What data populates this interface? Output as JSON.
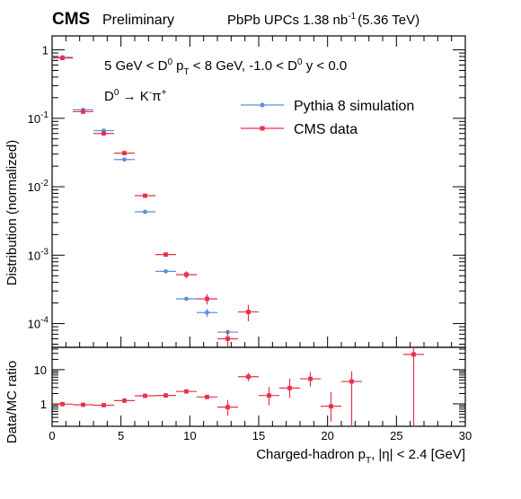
{
  "header": {
    "experiment": "CMS",
    "status": "Preliminary",
    "lumi_text": "PbPb UPCs 1.38 nb",
    "lumi_exp": "-1",
    "energy": "(5.36 TeV)"
  },
  "chart_data": [
    {
      "type": "scatter",
      "panel": "top",
      "title": "",
      "ylabel": "Distribution (normalized)",
      "xlim": [
        0,
        30
      ],
      "ylim_log": [
        4.5e-05,
        1.6
      ],
      "y_scale": "log",
      "y_ticks": [
        {
          "base": "10",
          "exp": "-4",
          "value": 0.0001
        },
        {
          "base": "10",
          "exp": "-3",
          "value": 0.001
        },
        {
          "base": "10",
          "exp": "-2",
          "value": 0.01
        },
        {
          "base": "10",
          "exp": "-1",
          "value": 0.1
        },
        {
          "base": "1",
          "exp": "",
          "value": 1
        }
      ],
      "annotations": {
        "selection": {
          "t1": "5 GeV < D",
          "s1": "0",
          "t2": " p",
          "s2": "T",
          "t3": " < 8 GeV, -1.0 < D",
          "s3": "0",
          "t4": " y < 0.0"
        },
        "decay": {
          "t1": "D",
          "s1": "0",
          "arrow": " → K",
          "s2": "-",
          "t2": "π",
          "s3": "+"
        }
      },
      "legend_placement": "top-right",
      "series": [
        {
          "name": "Pythia 8 simulation",
          "color": "#5b8ee0",
          "points": [
            {
              "x": 0.75,
              "y": 0.78,
              "xerr": 0.75
            },
            {
              "x": 2.25,
              "y": 0.133,
              "xerr": 0.75
            },
            {
              "x": 3.75,
              "y": 0.066,
              "xerr": 0.75
            },
            {
              "x": 5.25,
              "y": 0.025,
              "xerr": 0.75
            },
            {
              "x": 6.75,
              "y": 0.0043,
              "xerr": 0.75
            },
            {
              "x": 8.25,
              "y": 0.00058,
              "xerr": 0.75
            },
            {
              "x": 9.75,
              "y": 0.00023,
              "xerr": 0.75
            },
            {
              "x": 11.25,
              "y": 0.000145,
              "xerr": 0.75,
              "yerr": 2e-05
            },
            {
              "x": 12.75,
              "y": 7.5e-05,
              "xerr": 0.75
            }
          ]
        },
        {
          "name": "CMS data",
          "color": "#e8304a",
          "points": [
            {
              "x": 0.75,
              "y": 0.76,
              "xerr": 0.75
            },
            {
              "x": 2.25,
              "y": 0.125,
              "xerr": 0.75
            },
            {
              "x": 3.75,
              "y": 0.06,
              "xerr": 0.75
            },
            {
              "x": 5.25,
              "y": 0.031,
              "xerr": 0.75
            },
            {
              "x": 6.75,
              "y": 0.0074,
              "xerr": 0.75
            },
            {
              "x": 8.25,
              "y": 0.00102,
              "xerr": 0.75,
              "yerr": 7e-05
            },
            {
              "x": 9.75,
              "y": 0.00052,
              "xerr": 0.75,
              "yerr": 6e-05
            },
            {
              "x": 11.25,
              "y": 0.00023,
              "xerr": 0.75,
              "yerr": 4e-05
            },
            {
              "x": 12.75,
              "y": 6e-05,
              "xerr": 0.75,
              "yerr": 2e-05
            },
            {
              "x": 14.25,
              "y": 0.000148,
              "xerr": 0.75,
              "yerr": 4e-05
            }
          ]
        }
      ]
    },
    {
      "type": "scatter",
      "panel": "bottom",
      "xlabel": {
        "t1": "Charged-hadron p",
        "s1": "T",
        "t2": ", |η| < 2.4 [GeV]"
      },
      "ylabel": "Data/MC ratio",
      "xlim": [
        0,
        30
      ],
      "x_ticks": [
        "0",
        "5",
        "10",
        "15",
        "20",
        "25",
        "30"
      ],
      "y_scale": "log",
      "ylim_log": [
        0.22,
        45
      ],
      "y_ticks": [
        {
          "label": "1",
          "value": 1
        },
        {
          "label": "10",
          "value": 10
        }
      ],
      "series": [
        {
          "name": "",
          "color": "#e8304a",
          "points": [
            {
              "x": 0.75,
              "y": 0.98,
              "xerr": 0.75
            },
            {
              "x": 2.25,
              "y": 0.94,
              "xerr": 0.75
            },
            {
              "x": 3.75,
              "y": 0.91,
              "xerr": 0.75
            },
            {
              "x": 5.25,
              "y": 1.24,
              "xerr": 0.75
            },
            {
              "x": 6.75,
              "y": 1.72,
              "xerr": 0.75
            },
            {
              "x": 8.25,
              "y": 1.76,
              "xerr": 0.75
            },
            {
              "x": 9.75,
              "y": 2.3,
              "xerr": 0.75
            },
            {
              "x": 11.25,
              "y": 1.59,
              "xerr": 0.75
            },
            {
              "x": 12.75,
              "y": 0.8,
              "xerr": 0.75,
              "ylo": 0.45,
              "yhi": 1.3
            },
            {
              "x": 14.25,
              "y": 6.2,
              "xerr": 0.75,
              "ylo": 4.6,
              "yhi": 8.1
            },
            {
              "x": 15.75,
              "y": 1.75,
              "xerr": 0.75,
              "ylo": 0.9,
              "yhi": 3.1
            },
            {
              "x": 17.25,
              "y": 2.9,
              "xerr": 0.75,
              "ylo": 1.5,
              "yhi": 5.5
            },
            {
              "x": 18.75,
              "y": 5.4,
              "xerr": 0.75,
              "ylo": 3.2,
              "yhi": 8.5
            },
            {
              "x": 20.25,
              "y": 0.85,
              "xerr": 0.75,
              "ylo": 0.3,
              "yhi": 2.2
            },
            {
              "x": 21.75,
              "y": 4.5,
              "xerr": 0.75,
              "ylo": 0.22,
              "yhi": 9.0
            },
            {
              "x": 26.25,
              "y": 28,
              "xerr": 0.75,
              "ylo": 0.22,
              "yhi": 45
            }
          ]
        }
      ]
    }
  ]
}
